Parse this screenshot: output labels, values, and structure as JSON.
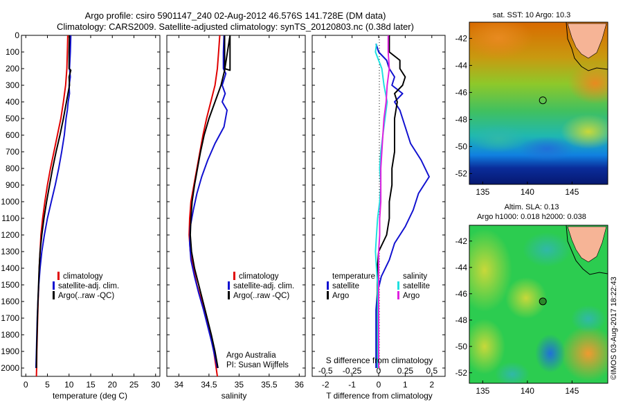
{
  "header": {
    "title_line1": "Argo profile: csiro 5901147_240 02-Aug-2012 46.576S 141.728E (DM data)",
    "title_line2": "Climatology: CARS2009. Satellite-adjusted climatology: synTS_20120803.nc (0.38d later)"
  },
  "colors": {
    "climatology": "#e00000",
    "satellite": "#1010d0",
    "argo": "#000000",
    "sal_satellite": "#20e0e0",
    "sal_argo": "#e020e0",
    "land": "#f6b496"
  },
  "chart_data": [
    {
      "type": "line",
      "name": "temperature-panel",
      "xlabel": "temperature (deg C)",
      "xlim": [
        -1,
        31
      ],
      "xticks": [
        0,
        5,
        10,
        15,
        20,
        25,
        30
      ],
      "ylim": [
        2050,
        0
      ],
      "yticks": [
        0,
        100,
        200,
        300,
        400,
        500,
        600,
        700,
        800,
        900,
        1000,
        1100,
        1200,
        1300,
        1400,
        1500,
        1600,
        1700,
        1800,
        1900,
        2000
      ],
      "legend": [
        "climatology",
        "satellite-adj. clim.",
        "Argo(..raw -QC)"
      ],
      "series": [
        {
          "name": "climatology",
          "color": "#e00000",
          "points": [
            [
              9.7,
              0
            ],
            [
              9.6,
              100
            ],
            [
              9.5,
              200
            ],
            [
              9.2,
              300
            ],
            [
              8.7,
              400
            ],
            [
              8.1,
              500
            ],
            [
              7.3,
              600
            ],
            [
              6.5,
              700
            ],
            [
              5.7,
              800
            ],
            [
              5.0,
              900
            ],
            [
              4.4,
              1000
            ],
            [
              3.9,
              1100
            ],
            [
              3.5,
              1200
            ],
            [
              3.3,
              1300
            ],
            [
              3.1,
              1400
            ],
            [
              3.0,
              1500
            ],
            [
              2.85,
              1600
            ],
            [
              2.75,
              1700
            ],
            [
              2.65,
              1800
            ],
            [
              2.55,
              1900
            ],
            [
              2.5,
              2000
            ],
            [
              2.45,
              2050
            ]
          ]
        },
        {
          "name": "satellite-adj. clim.",
          "color": "#1010d0",
          "points": [
            [
              10.4,
              0
            ],
            [
              10.3,
              100
            ],
            [
              10.1,
              200
            ],
            [
              10.3,
              250
            ],
            [
              10.0,
              300
            ],
            [
              10.1,
              350
            ],
            [
              9.8,
              400
            ],
            [
              9.6,
              450
            ],
            [
              9.3,
              500
            ],
            [
              8.9,
              600
            ],
            [
              8.3,
              700
            ],
            [
              7.6,
              800
            ],
            [
              6.8,
              900
            ],
            [
              5.9,
              1000
            ],
            [
              5.0,
              1100
            ],
            [
              4.3,
              1200
            ],
            [
              3.7,
              1300
            ],
            [
              3.3,
              1400
            ],
            [
              3.0,
              1500
            ],
            [
              2.8,
              1600
            ],
            [
              2.65,
              1700
            ],
            [
              2.55,
              1800
            ],
            [
              2.45,
              1900
            ],
            [
              2.35,
              2000
            ]
          ]
        },
        {
          "name": "Argo(..raw -QC)",
          "color": "#000000",
          "points": [
            [
              10.1,
              0
            ],
            [
              10.0,
              100
            ],
            [
              10.0,
              200
            ],
            [
              10.4,
              210
            ],
            [
              10.0,
              250
            ],
            [
              10.1,
              300
            ],
            [
              9.4,
              400
            ],
            [
              8.7,
              500
            ],
            [
              7.9,
              600
            ],
            [
              7.0,
              700
            ],
            [
              6.2,
              800
            ],
            [
              5.5,
              900
            ],
            [
              4.8,
              1000
            ],
            [
              4.2,
              1100
            ],
            [
              3.7,
              1200
            ],
            [
              3.3,
              1300
            ],
            [
              3.1,
              1400
            ],
            [
              2.95,
              1500
            ],
            [
              2.8,
              1600
            ],
            [
              2.7,
              1700
            ],
            [
              2.6,
              1800
            ],
            [
              2.5,
              1900
            ],
            [
              2.45,
              2000
            ]
          ]
        }
      ]
    },
    {
      "type": "line",
      "name": "salinity-panel",
      "xlabel": "salinity",
      "xlim": [
        33.8,
        36.1
      ],
      "xticks": [
        34,
        34.5,
        35,
        35.5,
        36
      ],
      "ylim": [
        2050,
        0
      ],
      "legend": [
        "climatology",
        "satellite-adj. clim.",
        "Argo(..raw -QC)"
      ],
      "annotation": [
        "Argo Australia",
        "PI: Susan Wijffels"
      ],
      "series": [
        {
          "name": "climatology",
          "color": "#e00000",
          "points": [
            [
              34.68,
              0
            ],
            [
              34.66,
              100
            ],
            [
              34.64,
              200
            ],
            [
              34.6,
              300
            ],
            [
              34.53,
              400
            ],
            [
              34.46,
              500
            ],
            [
              34.4,
              600
            ],
            [
              34.35,
              700
            ],
            [
              34.3,
              800
            ],
            [
              34.25,
              900
            ],
            [
              34.2,
              1000
            ],
            [
              34.18,
              1100
            ],
            [
              34.17,
              1200
            ],
            [
              34.19,
              1300
            ],
            [
              34.24,
              1400
            ],
            [
              34.3,
              1500
            ],
            [
              34.38,
              1600
            ],
            [
              34.45,
              1700
            ],
            [
              34.52,
              1800
            ],
            [
              34.58,
              1900
            ],
            [
              34.62,
              2000
            ],
            [
              34.64,
              2050
            ]
          ]
        },
        {
          "name": "satellite-adj. clim.",
          "color": "#1010d0",
          "points": [
            [
              34.75,
              0
            ],
            [
              34.74,
              100
            ],
            [
              34.74,
              200
            ],
            [
              34.78,
              230
            ],
            [
              34.72,
              300
            ],
            [
              34.77,
              350
            ],
            [
              34.72,
              400
            ],
            [
              34.8,
              450
            ],
            [
              34.75,
              550
            ],
            [
              34.6,
              650
            ],
            [
              34.48,
              750
            ],
            [
              34.38,
              850
            ],
            [
              34.3,
              950
            ],
            [
              34.24,
              1050
            ],
            [
              34.19,
              1150
            ],
            [
              34.18,
              1250
            ],
            [
              34.2,
              1350
            ],
            [
              34.26,
              1450
            ],
            [
              34.33,
              1550
            ],
            [
              34.41,
              1650
            ],
            [
              34.48,
              1750
            ],
            [
              34.55,
              1850
            ],
            [
              34.61,
              1950
            ],
            [
              34.64,
              2000
            ]
          ]
        },
        {
          "name": "Argo(..raw -QC)",
          "color": "#000000",
          "points": [
            [
              34.76,
              0
            ],
            [
              34.76,
              100
            ],
            [
              34.76,
              200
            ],
            [
              34.85,
              210
            ],
            [
              34.85,
              0
            ],
            [
              34.76,
              210
            ],
            [
              34.7,
              300
            ],
            [
              34.6,
              400
            ],
            [
              34.5,
              500
            ],
            [
              34.42,
              600
            ],
            [
              34.36,
              700
            ],
            [
              34.31,
              800
            ],
            [
              34.26,
              900
            ],
            [
              34.22,
              1000
            ],
            [
              34.2,
              1100
            ],
            [
              34.19,
              1200
            ],
            [
              34.21,
              1300
            ],
            [
              34.26,
              1400
            ],
            [
              34.33,
              1500
            ],
            [
              34.4,
              1600
            ],
            [
              34.47,
              1700
            ],
            [
              34.54,
              1800
            ],
            [
              34.6,
              1900
            ],
            [
              34.65,
              2000
            ]
          ]
        }
      ]
    },
    {
      "type": "line",
      "name": "difference-panel",
      "xlabel": "T difference from climatology",
      "xlabel_top": "S difference from climatology",
      "xlim": [
        -2.5,
        2.5
      ],
      "xticks": [
        -2,
        -1,
        0,
        1,
        2
      ],
      "xticks_top": [
        "-0.5",
        "-0.25",
        "0",
        "0.25",
        "0.5"
      ],
      "ylim": [
        2050,
        0
      ],
      "legend_temperature": [
        "temperature",
        "satellite",
        "Argo"
      ],
      "legend_salinity": [
        "salinity",
        "satellite",
        "Argo"
      ],
      "series": [
        {
          "name": "T satellite",
          "color": "#1010d0",
          "points": [
            [
              -0.1,
              50
            ],
            [
              0.0,
              100
            ],
            [
              0.3,
              150
            ],
            [
              0.4,
              200
            ],
            [
              0.6,
              250
            ],
            [
              0.5,
              300
            ],
            [
              0.9,
              350
            ],
            [
              0.6,
              400
            ],
            [
              0.8,
              450
            ],
            [
              1.0,
              550
            ],
            [
              1.2,
              650
            ],
            [
              1.6,
              750
            ],
            [
              1.9,
              850
            ],
            [
              1.5,
              950
            ],
            [
              1.3,
              1050
            ],
            [
              1.0,
              1150
            ],
            [
              0.6,
              1250
            ],
            [
              0.4,
              1350
            ],
            [
              0.1,
              1450
            ],
            [
              -0.05,
              1550
            ],
            [
              -0.1,
              1650
            ],
            [
              -0.1,
              1800
            ],
            [
              -0.1,
              1950
            ],
            [
              -0.1,
              2000
            ]
          ]
        },
        {
          "name": "T Argo",
          "color": "#000000",
          "points": [
            [
              0.4,
              0
            ],
            [
              0.4,
              100
            ],
            [
              0.8,
              150
            ],
            [
              0.8,
              200
            ],
            [
              1.0,
              250
            ],
            [
              0.9,
              300
            ],
            [
              0.6,
              350
            ],
            [
              0.7,
              400
            ],
            [
              0.6,
              500
            ],
            [
              0.6,
              600
            ],
            [
              0.6,
              700
            ],
            [
              0.5,
              800
            ],
            [
              0.5,
              900
            ],
            [
              0.4,
              1000
            ],
            [
              0.4,
              1100
            ],
            [
              0.3,
              1200
            ],
            [
              0.0,
              1300
            ],
            [
              -0.05,
              1400
            ],
            [
              -0.05,
              1500
            ],
            [
              -0.05,
              1600
            ],
            [
              -0.05,
              1800
            ],
            [
              -0.05,
              2000
            ]
          ]
        },
        {
          "name": "S satellite",
          "color": "#20e0e0",
          "points": [
            [
              -0.02,
              50
            ],
            [
              -0.03,
              100
            ],
            [
              0.0,
              150
            ],
            [
              0.03,
              200
            ],
            [
              0.05,
              300
            ],
            [
              0.08,
              400
            ],
            [
              0.06,
              500
            ],
            [
              0.04,
              600
            ],
            [
              0.02,
              700
            ],
            [
              0.01,
              800
            ],
            [
              0.02,
              900
            ],
            [
              0.01,
              1000
            ],
            [
              -0.01,
              1100
            ],
            [
              -0.02,
              1200
            ],
            [
              -0.03,
              1300
            ],
            [
              -0.02,
              1400
            ],
            [
              -0.01,
              1500
            ],
            [
              -0.01,
              1600
            ],
            [
              -0.01,
              1700
            ],
            [
              -0.01,
              1800
            ],
            [
              -0.01,
              1900
            ],
            [
              -0.01,
              2000
            ]
          ]
        },
        {
          "name": "S Argo",
          "color": "#e020e0",
          "points": [
            [
              0.09,
              0
            ],
            [
              0.09,
              100
            ],
            [
              0.1,
              200
            ],
            [
              0.08,
              300
            ],
            [
              0.07,
              400
            ],
            [
              0.05,
              500
            ],
            [
              0.04,
              600
            ],
            [
              0.03,
              700
            ],
            [
              0.02,
              800
            ],
            [
              0.02,
              900
            ],
            [
              0.02,
              1000
            ],
            [
              0.01,
              1100
            ],
            [
              0.01,
              1200
            ],
            [
              0.0,
              1300
            ],
            [
              0.0,
              1500
            ],
            [
              0.0,
              1700
            ],
            [
              0.0,
              2000
            ]
          ]
        }
      ]
    },
    {
      "type": "heatmap",
      "name": "sst-map",
      "title": "sat. SST: 10 Argo: 10.3",
      "xticks": [
        135,
        140,
        145
      ],
      "yticks": [
        -42,
        -44,
        -46,
        -48,
        -50,
        -52
      ],
      "xlim": [
        133.5,
        149
      ],
      "ylim": [
        -52.8,
        -40.8
      ],
      "marker": [
        141.73,
        -46.58
      ]
    },
    {
      "type": "heatmap",
      "name": "sla-map",
      "title_line1": "Altim. SLA: 0.13",
      "title_line2": "Argo h1000: 0.018 h2000: 0.038",
      "xticks": [
        135,
        140,
        145
      ],
      "yticks": [
        -42,
        -44,
        -46,
        -48,
        -50,
        -52
      ],
      "xlim": [
        133.5,
        149
      ],
      "ylim": [
        -52.8,
        -40.8
      ],
      "marker": [
        141.73,
        -46.58
      ]
    }
  ],
  "footer": {
    "credit": "©IMOS 03-Aug-2017 18:22:43"
  }
}
